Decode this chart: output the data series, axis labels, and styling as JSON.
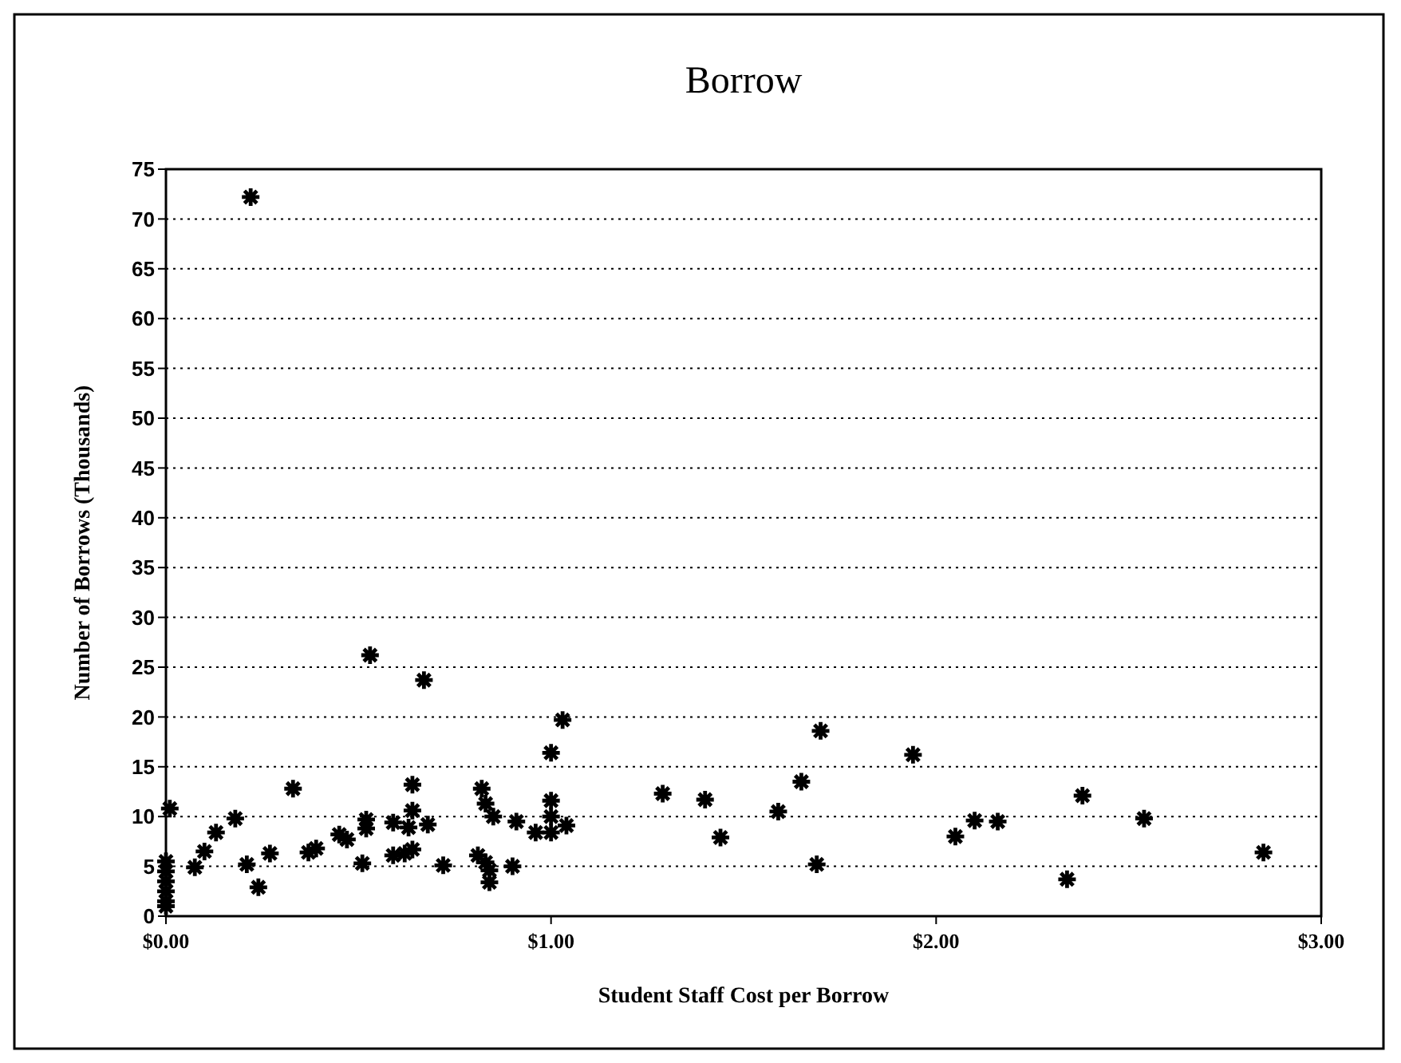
{
  "chart_data": {
    "type": "scatter",
    "title": "Borrow",
    "xlabel": "Student Staff Cost per Borrow",
    "ylabel": "Number of Borrows (Thousands)",
    "x": [
      0.22,
      0.01,
      0,
      0,
      0,
      0,
      0,
      0,
      0.075,
      0.1,
      0.13,
      0.18,
      0.21,
      0.24,
      0.27,
      0.33,
      0.37,
      0.39,
      0.45,
      0.47,
      0.51,
      0.52,
      0.52,
      0.53,
      0.59,
      0.59,
      0.62,
      0.64,
      0.64,
      0.64,
      0.63,
      0.68,
      0.67,
      0.72,
      0.82,
      0.83,
      0.85,
      0.81,
      0.83,
      0.84,
      0.84,
      0.9,
      0.91,
      0.96,
      1.0,
      1.0,
      1.0,
      1.04,
      1.0,
      1.03,
      1.29,
      1.4,
      1.44,
      1.59,
      1.65,
      1.7,
      1.69,
      1.94,
      2.05,
      2.1,
      2.16,
      2.38,
      2.34,
      2.54,
      2.85
    ],
    "values": [
      72.2,
      10.8,
      5.5,
      4.5,
      3.5,
      2.5,
      1.5,
      1,
      4.9,
      6.5,
      8.4,
      9.8,
      5.2,
      2.9,
      6.3,
      12.8,
      6.4,
      6.8,
      8.2,
      7.7,
      5.3,
      9.7,
      8.8,
      26.2,
      9.4,
      6.1,
      6.3,
      6.7,
      10.6,
      13.2,
      8.9,
      9.2,
      23.7,
      5.1,
      12.8,
      11.3,
      10,
      6.1,
      5.4,
      4.6,
      3.4,
      5,
      9.5,
      8.4,
      11.6,
      10,
      8.4,
      9.1,
      16.4,
      19.7,
      12.3,
      11.7,
      7.9,
      10.5,
      13.5,
      18.6,
      5.2,
      16.2,
      8,
      9.6,
      9.5,
      12.1,
      3.7,
      9.8,
      6.4
    ],
    "color": "#000000",
    "marker": "cross",
    "xlim": [
      0,
      3
    ],
    "xticks": [
      {
        "value": 0,
        "label": "$0.00"
      },
      {
        "value": 1,
        "label": "$1.00"
      },
      {
        "value": 2,
        "label": "$2.00"
      },
      {
        "value": 3,
        "label": "$3.00"
      }
    ],
    "ylim": [
      0,
      75
    ],
    "yticks": [
      0,
      5,
      10,
      15,
      20,
      25,
      30,
      35,
      40,
      45,
      50,
      55,
      60,
      65,
      70,
      75
    ],
    "grid": "y"
  }
}
